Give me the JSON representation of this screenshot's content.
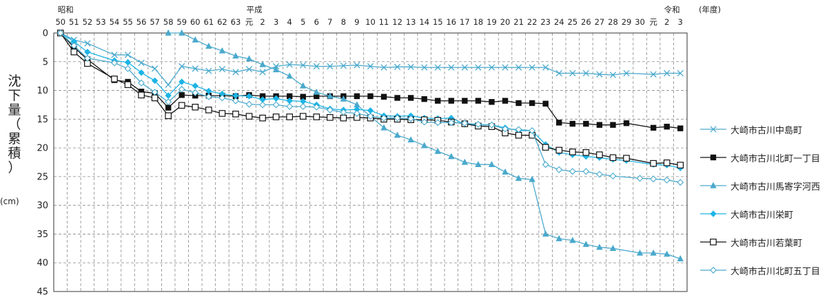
{
  "chart_data": {
    "type": "line",
    "ylabel_chars": [
      "沈",
      "下",
      "量",
      "（",
      "累",
      "積",
      "）"
    ],
    "yunit": "(cm)",
    "ylim": [
      0,
      45
    ],
    "y_ticks": [
      0,
      5,
      10,
      15,
      20,
      25,
      30,
      35,
      40,
      45
    ],
    "year_unit_label": "(年度)",
    "era_labels": [
      {
        "label": "昭和",
        "at": 0
      },
      {
        "label": "平成",
        "at": 14
      },
      {
        "label": "令和",
        "at": 45
      }
    ],
    "x_labels": [
      "50",
      "51",
      "52",
      "53",
      "54",
      "55",
      "56",
      "57",
      "58",
      "59",
      "60",
      "61",
      "62",
      "63",
      "元",
      "2",
      "3",
      "4",
      "5",
      "6",
      "7",
      "8",
      "9",
      "10",
      "11",
      "12",
      "13",
      "14",
      "15",
      "16",
      "17",
      "18",
      "19",
      "20",
      "21",
      "22",
      "23",
      "24",
      "25",
      "26",
      "27",
      "28",
      "29",
      "30",
      "元",
      "2",
      "3"
    ],
    "series": [
      {
        "name": "大崎市古川中島町",
        "color": "#4aa9cc",
        "marker": "x",
        "points": [
          [
            0,
            0
          ],
          [
            1,
            1.2
          ],
          [
            2,
            1.8
          ],
          [
            4,
            3.8
          ],
          [
            5,
            3.8
          ],
          [
            6,
            5.2
          ],
          [
            7,
            6.2
          ],
          [
            8,
            9.0
          ],
          [
            9,
            5.8
          ],
          [
            10,
            6.2
          ],
          [
            11,
            6.6
          ],
          [
            12,
            6.3
          ],
          [
            13,
            6.8
          ],
          [
            14,
            6.3
          ],
          [
            15,
            6.8
          ],
          [
            16,
            5.8
          ],
          [
            17,
            5.5
          ],
          [
            18,
            5.6
          ],
          [
            19,
            5.8
          ],
          [
            20,
            5.8
          ],
          [
            21,
            5.7
          ],
          [
            22,
            5.6
          ],
          [
            23,
            5.8
          ],
          [
            24,
            6.0
          ],
          [
            25,
            5.9
          ],
          [
            26,
            5.9
          ],
          [
            27,
            6.0
          ],
          [
            28,
            6.0
          ],
          [
            29,
            6.0
          ],
          [
            30,
            6.0
          ],
          [
            31,
            6.0
          ],
          [
            32,
            6.0
          ],
          [
            33,
            6.0
          ],
          [
            34,
            6.0
          ],
          [
            35,
            6.0
          ],
          [
            36,
            6.0
          ],
          [
            37,
            7.0
          ],
          [
            38,
            7.0
          ],
          [
            39,
            7.0
          ],
          [
            40,
            7.2
          ],
          [
            41,
            7.3
          ],
          [
            42,
            7.0
          ],
          [
            44,
            7.2
          ],
          [
            45,
            7.0
          ],
          [
            46,
            7.0
          ]
        ]
      },
      {
        "name": "大崎市古川北町一丁目",
        "color": "#111111",
        "marker": "square-filled",
        "points": [
          [
            0,
            0
          ],
          [
            1,
            2.5
          ],
          [
            2,
            4.6
          ],
          [
            4,
            8.2
          ],
          [
            5,
            8.5
          ],
          [
            6,
            10.2
          ],
          [
            7,
            10.5
          ],
          [
            8,
            13.0
          ],
          [
            9,
            10.8
          ],
          [
            10,
            10.9
          ],
          [
            11,
            10.9
          ],
          [
            12,
            10.9
          ],
          [
            13,
            11.0
          ],
          [
            14,
            10.8
          ],
          [
            15,
            11.0
          ],
          [
            16,
            11.0
          ],
          [
            17,
            11.0
          ],
          [
            18,
            11.1
          ],
          [
            19,
            11.0
          ],
          [
            20,
            11.0
          ],
          [
            21,
            11.0
          ],
          [
            22,
            11.0
          ],
          [
            23,
            11.0
          ],
          [
            24,
            11.1
          ],
          [
            25,
            11.3
          ],
          [
            26,
            11.3
          ],
          [
            27,
            11.5
          ],
          [
            28,
            11.8
          ],
          [
            29,
            11.8
          ],
          [
            30,
            11.8
          ],
          [
            31,
            11.8
          ],
          [
            32,
            12.0
          ],
          [
            33,
            11.8
          ],
          [
            34,
            12.2
          ],
          [
            35,
            12.2
          ],
          [
            36,
            12.3
          ],
          [
            37,
            15.6
          ],
          [
            38,
            15.8
          ],
          [
            39,
            15.8
          ],
          [
            40,
            16.0
          ],
          [
            41,
            16.0
          ],
          [
            42,
            15.7
          ],
          [
            44,
            16.5
          ],
          [
            45,
            16.3
          ],
          [
            46,
            16.6
          ]
        ]
      },
      {
        "name": "大崎市古川馬寄字河西",
        "color": "#4aa9cc",
        "marker": "triangle",
        "points": [
          [
            8,
            0
          ],
          [
            9,
            0
          ],
          [
            10,
            1.2
          ],
          [
            11,
            2.3
          ],
          [
            12,
            3.1
          ],
          [
            13,
            4.0
          ],
          [
            14,
            4.5
          ],
          [
            15,
            5.5
          ],
          [
            16,
            6.4
          ],
          [
            17,
            7.5
          ],
          [
            18,
            9.2
          ],
          [
            19,
            10.3
          ],
          [
            20,
            11.0
          ],
          [
            21,
            11.5
          ],
          [
            22,
            12.5
          ],
          [
            23,
            14.5
          ],
          [
            24,
            16.5
          ],
          [
            25,
            17.8
          ],
          [
            26,
            18.6
          ],
          [
            27,
            19.6
          ],
          [
            28,
            20.6
          ],
          [
            29,
            21.5
          ],
          [
            30,
            22.5
          ],
          [
            31,
            22.9
          ],
          [
            32,
            22.9
          ],
          [
            33,
            24.2
          ],
          [
            34,
            25.3
          ],
          [
            35,
            25.5
          ],
          [
            36,
            35.0
          ],
          [
            37,
            35.8
          ],
          [
            38,
            36.1
          ],
          [
            39,
            36.8
          ],
          [
            40,
            37.3
          ],
          [
            41,
            37.5
          ],
          [
            43,
            38.3
          ],
          [
            44,
            38.3
          ],
          [
            45,
            38.5
          ],
          [
            46,
            39.3
          ]
        ]
      },
      {
        "name": "大崎市古川栄町",
        "color": "#1db4e6",
        "marker": "diamond-filled",
        "points": [
          [
            0,
            0
          ],
          [
            1,
            1.5
          ],
          [
            2,
            3.3
          ],
          [
            4,
            4.8
          ],
          [
            5,
            5.1
          ],
          [
            6,
            6.9
          ],
          [
            7,
            8.3
          ],
          [
            8,
            10.9
          ],
          [
            9,
            8.5
          ],
          [
            10,
            9.2
          ],
          [
            11,
            10.1
          ],
          [
            12,
            10.6
          ],
          [
            13,
            10.9
          ],
          [
            14,
            11.0
          ],
          [
            15,
            11.6
          ],
          [
            16,
            11.4
          ],
          [
            17,
            11.8
          ],
          [
            18,
            11.9
          ],
          [
            19,
            12.5
          ],
          [
            20,
            13.2
          ],
          [
            21,
            13.4
          ],
          [
            22,
            13.3
          ],
          [
            23,
            13.5
          ],
          [
            24,
            14.4
          ],
          [
            25,
            14.5
          ],
          [
            26,
            14.4
          ],
          [
            27,
            14.8
          ],
          [
            28,
            14.9
          ],
          [
            29,
            14.8
          ],
          [
            30,
            15.9
          ],
          [
            31,
            16.0
          ],
          [
            32,
            16.0
          ],
          [
            33,
            16.5
          ],
          [
            34,
            17.0
          ],
          [
            35,
            17.0
          ],
          [
            36,
            19.4
          ],
          [
            37,
            20.8
          ],
          [
            38,
            21.2
          ],
          [
            39,
            21.5
          ],
          [
            40,
            21.7
          ],
          [
            41,
            22.0
          ],
          [
            42,
            22.2
          ],
          [
            44,
            22.9
          ],
          [
            45,
            23.0
          ],
          [
            46,
            23.5
          ]
        ]
      },
      {
        "name": "大崎市古川若葉町",
        "color": "#111111",
        "marker": "square-open",
        "points": [
          [
            0,
            0
          ],
          [
            1,
            3.3
          ],
          [
            2,
            5.3
          ],
          [
            4,
            8.0
          ],
          [
            5,
            9.0
          ],
          [
            6,
            10.8
          ],
          [
            7,
            11.3
          ],
          [
            8,
            14.4
          ],
          [
            9,
            12.6
          ],
          [
            10,
            12.9
          ],
          [
            11,
            13.4
          ],
          [
            12,
            14.0
          ],
          [
            13,
            14.1
          ],
          [
            14,
            14.5
          ],
          [
            15,
            14.8
          ],
          [
            16,
            14.6
          ],
          [
            17,
            14.6
          ],
          [
            18,
            14.5
          ],
          [
            19,
            14.6
          ],
          [
            20,
            14.7
          ],
          [
            21,
            14.8
          ],
          [
            22,
            14.7
          ],
          [
            23,
            14.8
          ],
          [
            24,
            15.0
          ],
          [
            25,
            15.0
          ],
          [
            26,
            15.1
          ],
          [
            27,
            15.1
          ],
          [
            28,
            15.2
          ],
          [
            29,
            15.5
          ],
          [
            30,
            15.8
          ],
          [
            31,
            16.2
          ],
          [
            32,
            16.3
          ],
          [
            33,
            17.4
          ],
          [
            34,
            17.8
          ],
          [
            35,
            17.8
          ],
          [
            36,
            19.9
          ],
          [
            37,
            20.4
          ],
          [
            38,
            20.7
          ],
          [
            39,
            20.8
          ],
          [
            40,
            21.2
          ],
          [
            41,
            21.7
          ],
          [
            42,
            21.8
          ],
          [
            44,
            22.7
          ],
          [
            45,
            22.6
          ],
          [
            46,
            23.0
          ]
        ]
      },
      {
        "name": "大崎市古川北町五丁目",
        "color": "#4aa9cc",
        "marker": "diamond-open",
        "points": [
          [
            0,
            0
          ],
          [
            1,
            2.2
          ],
          [
            2,
            4.4
          ],
          [
            4,
            5.2
          ],
          [
            5,
            6.2
          ],
          [
            6,
            8.7
          ],
          [
            7,
            10.3
          ],
          [
            8,
            12.0
          ],
          [
            9,
            9.8
          ],
          [
            10,
            10.4
          ],
          [
            11,
            11.1
          ],
          [
            12,
            11.3
          ],
          [
            13,
            11.8
          ],
          [
            14,
            12.4
          ],
          [
            15,
            12.5
          ],
          [
            16,
            12.5
          ],
          [
            17,
            12.8
          ],
          [
            18,
            12.8
          ],
          [
            19,
            12.9
          ],
          [
            20,
            13.4
          ],
          [
            21,
            13.8
          ],
          [
            22,
            14.0
          ],
          [
            23,
            14.5
          ],
          [
            24,
            14.8
          ],
          [
            25,
            14.8
          ],
          [
            26,
            14.9
          ],
          [
            27,
            15.5
          ],
          [
            28,
            15.6
          ],
          [
            29,
            15.6
          ],
          [
            30,
            15.7
          ],
          [
            31,
            15.9
          ],
          [
            32,
            16.0
          ],
          [
            33,
            16.7
          ],
          [
            34,
            16.8
          ],
          [
            35,
            17.0
          ],
          [
            36,
            22.9
          ],
          [
            37,
            23.8
          ],
          [
            38,
            24.1
          ],
          [
            39,
            24.1
          ],
          [
            40,
            24.6
          ],
          [
            41,
            24.9
          ],
          [
            43,
            25.3
          ],
          [
            44,
            25.4
          ],
          [
            45,
            25.6
          ],
          [
            46,
            26.0
          ]
        ]
      }
    ]
  }
}
